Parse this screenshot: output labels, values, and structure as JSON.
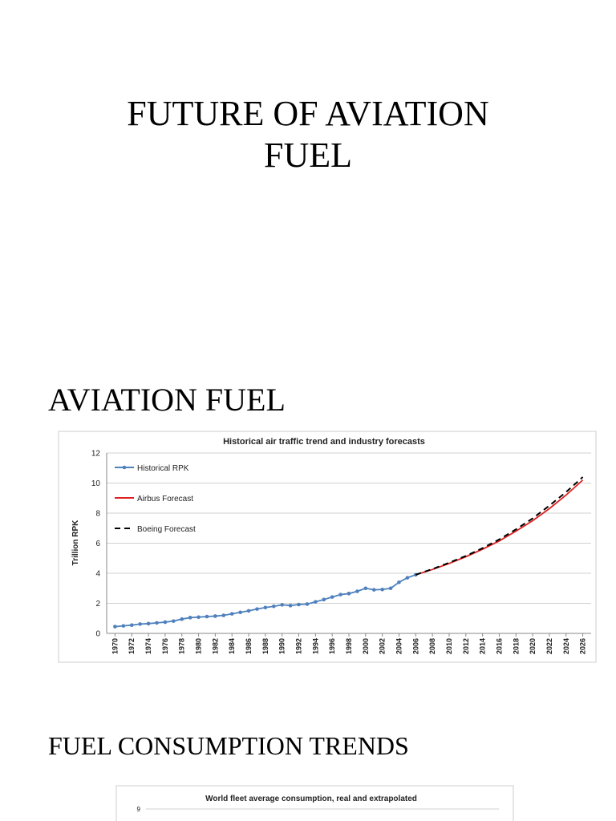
{
  "title_lines": [
    "FUTURE OF AVIATION",
    "FUEL"
  ],
  "section_heading": "AVIATION FUEL",
  "second_heading": "FUEL CONSUMPTION TRENDS",
  "chart_data": [
    {
      "type": "line",
      "title": "Historical air traffic trend and industry forecasts",
      "y_label": "Trillion RPK",
      "xlim": [
        1969,
        2027
      ],
      "xticks": [
        1970,
        1972,
        1974,
        1976,
        1978,
        1980,
        1982,
        1984,
        1986,
        1988,
        1990,
        1992,
        1994,
        1996,
        1998,
        2000,
        2002,
        2004,
        2006,
        2008,
        2010,
        2012,
        2014,
        2016,
        2018,
        2020,
        2022,
        2024,
        2026
      ],
      "ylim": [
        0,
        12
      ],
      "yticks": [
        0,
        2,
        4,
        6,
        8,
        10,
        12
      ],
      "grid": true,
      "legend": "upper-left",
      "series": [
        {
          "name": "Historical RPK",
          "color": "#4f81bd",
          "style": "solid",
          "markers": true,
          "x": [
            1970,
            1971,
            1972,
            1973,
            1974,
            1975,
            1976,
            1977,
            1978,
            1979,
            1980,
            1981,
            1982,
            1983,
            1984,
            1985,
            1986,
            1987,
            1988,
            1989,
            1990,
            1991,
            1992,
            1993,
            1994,
            1995,
            1996,
            1997,
            1998,
            1999,
            2000,
            2001,
            2002,
            2003,
            2004,
            2005,
            2006
          ],
          "values": [
            0.45,
            0.5,
            0.55,
            0.62,
            0.65,
            0.7,
            0.75,
            0.82,
            0.95,
            1.05,
            1.08,
            1.12,
            1.15,
            1.2,
            1.3,
            1.4,
            1.5,
            1.62,
            1.72,
            1.8,
            1.9,
            1.85,
            1.92,
            1.95,
            2.1,
            2.25,
            2.42,
            2.58,
            2.65,
            2.8,
            3.0,
            2.9,
            2.92,
            3.0,
            3.4,
            3.7,
            3.9
          ]
        },
        {
          "name": "Airbus Forecast",
          "color": "#e02020",
          "style": "solid",
          "markers": false,
          "x": [
            2006,
            2008,
            2010,
            2012,
            2014,
            2016,
            2018,
            2020,
            2022,
            2024,
            2026
          ],
          "values": [
            3.9,
            4.25,
            4.65,
            5.1,
            5.6,
            6.15,
            6.8,
            7.5,
            8.3,
            9.2,
            10.2
          ]
        },
        {
          "name": "Boeing Forecast",
          "color": "#000000",
          "style": "dashed",
          "markers": false,
          "x": [
            2006,
            2008,
            2010,
            2012,
            2014,
            2016,
            2018,
            2020,
            2022,
            2024,
            2026
          ],
          "values": [
            3.9,
            4.28,
            4.7,
            5.15,
            5.67,
            6.25,
            6.92,
            7.65,
            8.5,
            9.4,
            10.4
          ]
        }
      ]
    },
    {
      "type": "line",
      "title": "World fleet average consumption, real and extrapolated",
      "yticks": [
        9
      ]
    }
  ]
}
